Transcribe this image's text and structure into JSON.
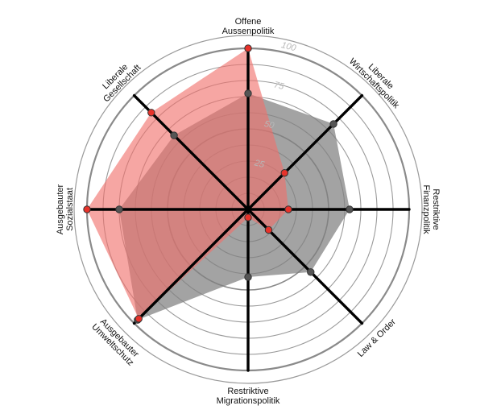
{
  "chart_data": {
    "type": "radar",
    "rmax": 100,
    "ticks": [
      {
        "value": 25,
        "label": "25"
      },
      {
        "value": 50,
        "label": "50"
      },
      {
        "value": 75,
        "label": "75"
      },
      {
        "value": 100,
        "label": "100"
      }
    ],
    "ring_step": 10,
    "axes": [
      {
        "lines": [
          "Offene",
          "Aussenpolitik"
        ]
      },
      {
        "lines": [
          "Liberale",
          "Wirtschaftspolitik"
        ]
      },
      {
        "lines": [
          "Restriktive",
          "Finanzpolitik"
        ]
      },
      {
        "lines": [
          "Law & Order"
        ]
      },
      {
        "lines": [
          "Restriktive",
          "Migrationspolitik"
        ]
      },
      {
        "lines": [
          "Ausgebauter",
          "Umweltschutz"
        ]
      },
      {
        "lines": [
          "Ausgebauter",
          "Sozialstaat"
        ]
      },
      {
        "lines": [
          "Liberale",
          "Gesellschaft"
        ]
      }
    ],
    "series": [
      {
        "values": [
          72,
          75,
          63,
          55,
          42,
          97,
          80,
          65
        ],
        "fill": "#7f7f7f",
        "fill_opacity": 0.72,
        "dot": "#555555"
      },
      {
        "values": [
          100,
          32,
          25,
          18,
          5,
          96,
          100,
          85
        ],
        "fill": "#f0706a",
        "fill_opacity": 0.62,
        "dot": "#e8322a"
      }
    ],
    "colors": {
      "ring": "#9a9a9a",
      "ring_major": "#8a8a8a",
      "axis": "#000000",
      "dot_stroke": "#333333"
    }
  }
}
